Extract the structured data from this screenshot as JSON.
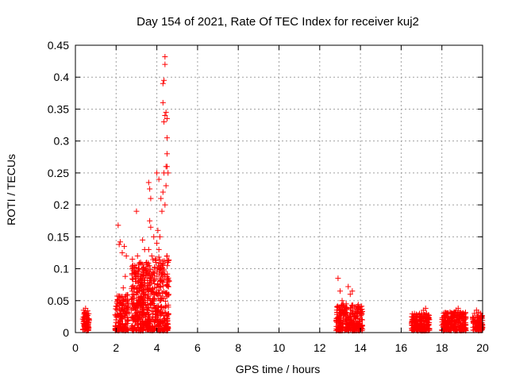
{
  "chart_data": {
    "type": "scatter",
    "title": "Day 154 of 2021, Rate Of TEC Index for receiver kuj2",
    "xlabel": "GPS time / hours",
    "ylabel": "ROTI / TECUs",
    "xlim": [
      0,
      20
    ],
    "ylim": [
      0,
      0.45
    ],
    "xticks": [
      "0",
      "2",
      "4",
      "6",
      "8",
      "10",
      "12",
      "14",
      "16",
      "18",
      "20"
    ],
    "yticks": [
      "0",
      "0.05",
      "0.1",
      "0.15",
      "0.2",
      "0.25",
      "0.3",
      "0.35",
      "0.4",
      "0.45"
    ],
    "grid": true,
    "marker": "+",
    "color": "#ff0000",
    "series": [
      {
        "name": "ROTI",
        "points": [
          [
            0.4,
            0.035
          ],
          [
            0.42,
            0.02
          ],
          [
            0.45,
            0.03
          ],
          [
            0.48,
            0.012
          ],
          [
            0.5,
            0.038
          ],
          [
            0.52,
            0.025
          ],
          [
            0.55,
            0.03
          ],
          [
            0.58,
            0.016
          ],
          [
            0.6,
            0.034
          ],
          [
            0.62,
            0.008
          ],
          [
            0.65,
            0.022
          ],
          [
            2.0,
            0.02
          ],
          [
            2.05,
            0.035
          ],
          [
            2.1,
            0.045
          ],
          [
            2.1,
            0.168
          ],
          [
            2.15,
            0.138
          ],
          [
            2.2,
            0.142
          ],
          [
            2.25,
            0.03
          ],
          [
            2.3,
            0.125
          ],
          [
            2.3,
            0.055
          ],
          [
            2.35,
            0.07
          ],
          [
            2.4,
            0.135
          ],
          [
            2.45,
            0.088
          ],
          [
            2.5,
            0.05
          ],
          [
            2.5,
            0.12
          ],
          [
            2.55,
            0.02
          ],
          [
            2.6,
            0.04
          ],
          [
            2.65,
            0.03
          ],
          [
            2.8,
            0.115
          ],
          [
            2.85,
            0.06
          ],
          [
            2.9,
            0.095
          ],
          [
            2.95,
            0.085
          ],
          [
            3.0,
            0.19
          ],
          [
            3.0,
            0.08
          ],
          [
            3.05,
            0.12
          ],
          [
            3.1,
            0.1
          ],
          [
            3.15,
            0.07
          ],
          [
            3.2,
            0.11
          ],
          [
            3.25,
            0.04
          ],
          [
            3.3,
            0.145
          ],
          [
            3.35,
            0.06
          ],
          [
            3.4,
            0.13
          ],
          [
            3.45,
            0.09
          ],
          [
            3.5,
            0.11
          ],
          [
            3.55,
            0.07
          ],
          [
            3.6,
            0.235
          ],
          [
            3.6,
            0.13
          ],
          [
            3.65,
            0.225
          ],
          [
            3.65,
            0.175
          ],
          [
            3.7,
            0.21
          ],
          [
            3.7,
            0.165
          ],
          [
            3.75,
            0.12
          ],
          [
            3.8,
            0.09
          ],
          [
            3.85,
            0.15
          ],
          [
            3.9,
            0.07
          ],
          [
            3.95,
            0.11
          ],
          [
            4.0,
            0.25
          ],
          [
            4.0,
            0.14
          ],
          [
            4.05,
            0.16
          ],
          [
            4.1,
            0.24
          ],
          [
            4.1,
            0.13
          ],
          [
            4.15,
            0.15
          ],
          [
            4.2,
            0.21
          ],
          [
            4.2,
            0.1
          ],
          [
            4.25,
            0.19
          ],
          [
            4.25,
            0.08
          ],
          [
            4.3,
            0.39
          ],
          [
            4.3,
            0.36
          ],
          [
            4.3,
            0.22
          ],
          [
            4.35,
            0.395
          ],
          [
            4.35,
            0.33
          ],
          [
            4.35,
            0.25
          ],
          [
            4.4,
            0.432
          ],
          [
            4.4,
            0.42
          ],
          [
            4.4,
            0.34
          ],
          [
            4.4,
            0.2
          ],
          [
            4.45,
            0.345
          ],
          [
            4.45,
            0.26
          ],
          [
            4.45,
            0.23
          ],
          [
            4.5,
            0.335
          ],
          [
            4.5,
            0.305
          ],
          [
            4.5,
            0.28
          ],
          [
            4.5,
            0.26
          ],
          [
            4.5,
            0.12
          ],
          [
            4.55,
            0.25
          ],
          [
            4.55,
            0.11
          ],
          [
            4.6,
            0.08
          ],
          [
            12.9,
            0.085
          ],
          [
            12.95,
            0.04
          ],
          [
            13.0,
            0.065
          ],
          [
            13.05,
            0.03
          ],
          [
            13.1,
            0.05
          ],
          [
            13.2,
            0.035
          ],
          [
            13.3,
            0.045
          ],
          [
            13.4,
            0.072
          ],
          [
            13.5,
            0.06
          ],
          [
            13.6,
            0.065
          ],
          [
            13.7,
            0.04
          ],
          [
            13.8,
            0.025
          ],
          [
            13.9,
            0.035
          ],
          [
            14.0,
            0.04
          ],
          [
            14.05,
            0.03
          ],
          [
            16.6,
            0.02
          ],
          [
            16.7,
            0.025
          ],
          [
            16.8,
            0.015
          ],
          [
            16.9,
            0.028
          ],
          [
            17.0,
            0.03
          ],
          [
            17.1,
            0.035
          ],
          [
            17.2,
            0.038
          ],
          [
            17.25,
            0.03
          ],
          [
            17.3,
            0.025
          ],
          [
            17.35,
            0.02
          ],
          [
            18.1,
            0.025
          ],
          [
            18.2,
            0.03
          ],
          [
            18.3,
            0.02
          ],
          [
            18.4,
            0.032
          ],
          [
            18.5,
            0.03
          ],
          [
            18.6,
            0.028
          ],
          [
            18.7,
            0.035
          ],
          [
            18.8,
            0.038
          ],
          [
            18.9,
            0.03
          ],
          [
            19.0,
            0.025
          ],
          [
            19.6,
            0.03
          ],
          [
            19.7,
            0.035
          ],
          [
            19.75,
            0.025
          ],
          [
            19.8,
            0.032
          ],
          [
            19.85,
            0.02
          ],
          [
            19.9,
            0.03
          ],
          [
            19.95,
            0.015
          ]
        ],
        "dense_bands": [
          {
            "x": [
              0.35,
              0.68
            ],
            "y_max": 0.032,
            "count": 60
          },
          {
            "x": [
              1.95,
              2.6
            ],
            "y_max": 0.06,
            "count": 160
          },
          {
            "x": [
              2.75,
              3.6
            ],
            "y_max": 0.11,
            "count": 320
          },
          {
            "x": [
              3.6,
              4.6
            ],
            "y_max": 0.12,
            "count": 300
          },
          {
            "x": [
              12.8,
              14.1
            ],
            "y_max": 0.045,
            "count": 300
          },
          {
            "x": [
              16.5,
              17.4
            ],
            "y_max": 0.03,
            "count": 200
          },
          {
            "x": [
              18.0,
              19.2
            ],
            "y_max": 0.032,
            "count": 240
          },
          {
            "x": [
              19.5,
              20.0
            ],
            "y_max": 0.028,
            "count": 90
          }
        ]
      }
    ]
  }
}
